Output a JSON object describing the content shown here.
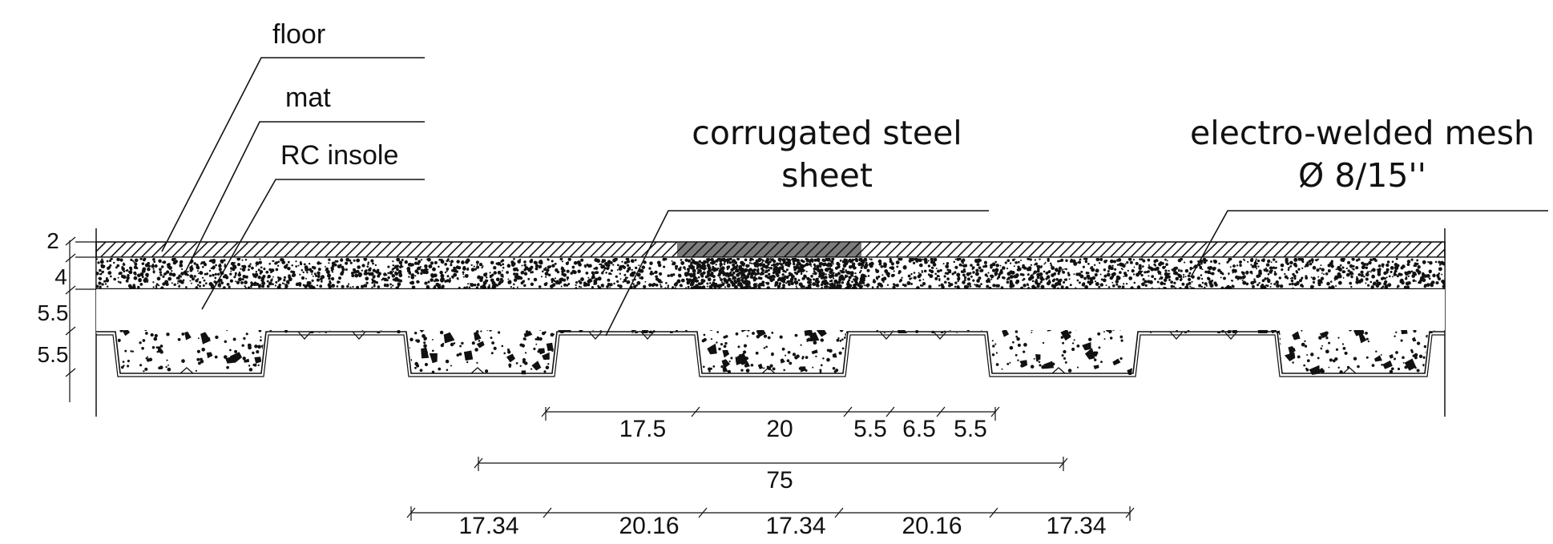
{
  "labels": {
    "floor": "floor",
    "mat": "mat",
    "rc_insole": "RC insole",
    "sheet_line1": "corrugated steel",
    "sheet_line2": "sheet",
    "mesh_line1": "electro-welded mesh",
    "mesh_line2": "Ø 8/15''"
  },
  "layer_thickness": [
    "2",
    "4",
    "5.5",
    "5.5"
  ],
  "dims_row1": [
    "17.5",
    "20",
    "5.5",
    "6.5",
    "5.5"
  ],
  "dims_row2": [
    "75"
  ],
  "dims_row3": [
    "17.34",
    "20.16",
    "17.34",
    "20.16",
    "17.34"
  ]
}
